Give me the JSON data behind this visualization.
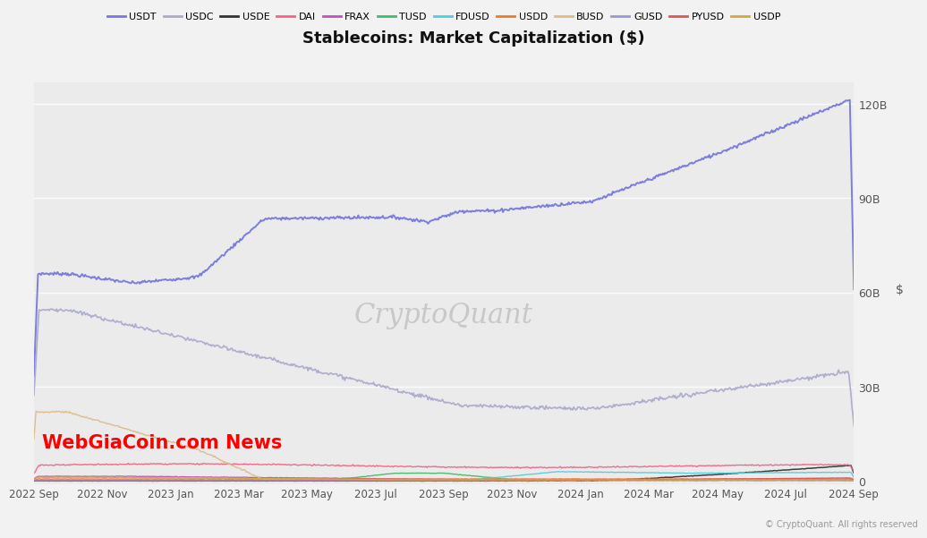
{
  "title": "Stablecoins: Market Capitalization ($)",
  "background_color": "#f2f2f2",
  "plot_bg_color": "#ebebeb",
  "watermark": "CryptoQuant",
  "copyright": "© CryptoQuant. All rights reserved",
  "ylabel": "$",
  "yticks": [
    0,
    30,
    60,
    90,
    120
  ],
  "ytick_labels": [
    "0",
    "30B",
    "60B",
    "90B",
    "120B"
  ],
  "ylim": [
    -1,
    127
  ],
  "series": {
    "USDT": {
      "color": "#7777dd",
      "linewidth": 1.4
    },
    "USDC": {
      "color": "#aaaacc",
      "linewidth": 1.2
    },
    "USDE": {
      "color": "#333333",
      "linewidth": 1.1
    },
    "DAI": {
      "color": "#ee6688",
      "linewidth": 1.0
    },
    "FRAX": {
      "color": "#bb55bb",
      "linewidth": 1.0
    },
    "TUSD": {
      "color": "#44bb66",
      "linewidth": 1.0
    },
    "FDUSD": {
      "color": "#55ccdd",
      "linewidth": 1.0
    },
    "USDD": {
      "color": "#ee7733",
      "linewidth": 1.0
    },
    "BUSD": {
      "color": "#ddbb88",
      "linewidth": 1.0
    },
    "GUSD": {
      "color": "#9999cc",
      "linewidth": 1.0
    },
    "PYUSD": {
      "color": "#dd5555",
      "linewidth": 1.0
    },
    "USDP": {
      "color": "#ccaa44",
      "linewidth": 1.0
    }
  },
  "xtick_labels": [
    "2022 Sep",
    "2022 Nov",
    "2023 Jan",
    "2023 Mar",
    "2023 May",
    "2023 Jul",
    "2023 Sep",
    "2023 Nov",
    "2024 Jan",
    "2024 Mar",
    "2024 May",
    "2024 Jul",
    "2024 Sep"
  ],
  "n_points": 800
}
